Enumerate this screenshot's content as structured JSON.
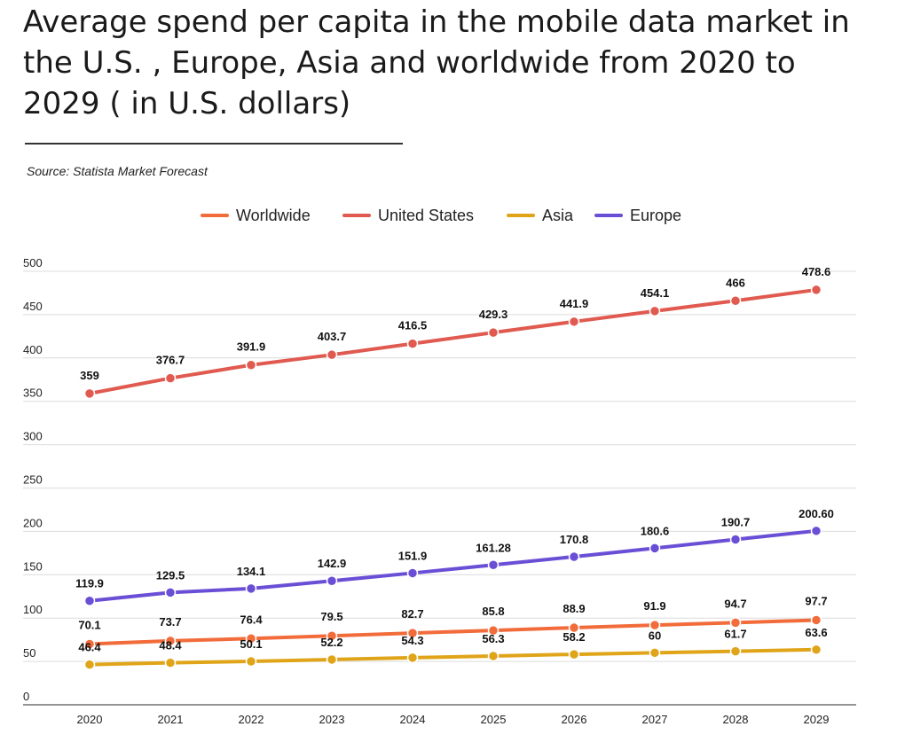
{
  "header": {
    "title": "Average spend per capita in the mobile data market in the U.S. , Europe, Asia and worldwide from 2020 to 2029 ( in U.S. dollars)",
    "source": "Source: Statista Market Forecast"
  },
  "chart_data": {
    "type": "line",
    "title": "Average spend per capita in the mobile data market in the U.S. , Europe, Asia and worldwide from 2020 to 2029 ( in U.S. dollars)",
    "xlabel": "",
    "ylabel": "",
    "x": [
      "2020",
      "2021",
      "2022",
      "2023",
      "2024",
      "2025",
      "2026",
      "2027",
      "2028",
      "2029"
    ],
    "ylim": [
      0,
      500
    ],
    "yticks": [
      0,
      50,
      100,
      150,
      200,
      250,
      300,
      350,
      400,
      450,
      500
    ],
    "grid": true,
    "legend_position": "top-center",
    "series": [
      {
        "name": "Worldwide",
        "color": "#f26b3a",
        "values": [
          70.1,
          73.7,
          76.4,
          79.5,
          82.7,
          85.8,
          88.9,
          91.9,
          94.7,
          97.7
        ],
        "labels": [
          "70.1",
          "73.7",
          "76.4",
          "79.5",
          "82.7",
          "85.8",
          "88.9",
          "91.9",
          "94.7",
          "97.7"
        ]
      },
      {
        "name": "United States",
        "color": "#e05a50",
        "values": [
          359,
          376.7,
          391.9,
          403.7,
          416.5,
          429.3,
          441.9,
          454.1,
          466,
          478.6
        ],
        "labels": [
          "359",
          "376.7",
          "391.9",
          "403.7",
          "416.5",
          "429.3",
          "441.9",
          "454.1",
          "466",
          "478.6"
        ]
      },
      {
        "name": "Asia",
        "color": "#e0a419",
        "values": [
          46.4,
          48.4,
          50.1,
          52.2,
          54.3,
          56.3,
          58.2,
          60,
          61.7,
          63.6
        ],
        "labels": [
          "46.4",
          "48.4",
          "50.1",
          "52.2",
          "54.3",
          "56.3",
          "58.2",
          "60",
          "61.7",
          "63.6"
        ]
      },
      {
        "name": "Europe",
        "color": "#6a4fd6",
        "values": [
          119.9,
          129.5,
          134.1,
          142.9,
          151.9,
          161.28,
          170.8,
          180.6,
          190.7,
          200.6
        ],
        "labels": [
          "119.9",
          "129.5",
          "134.1",
          "142.9",
          "151.9",
          "161.28",
          "170.8",
          "180.6",
          "190.7",
          "200.60"
        ]
      }
    ]
  }
}
